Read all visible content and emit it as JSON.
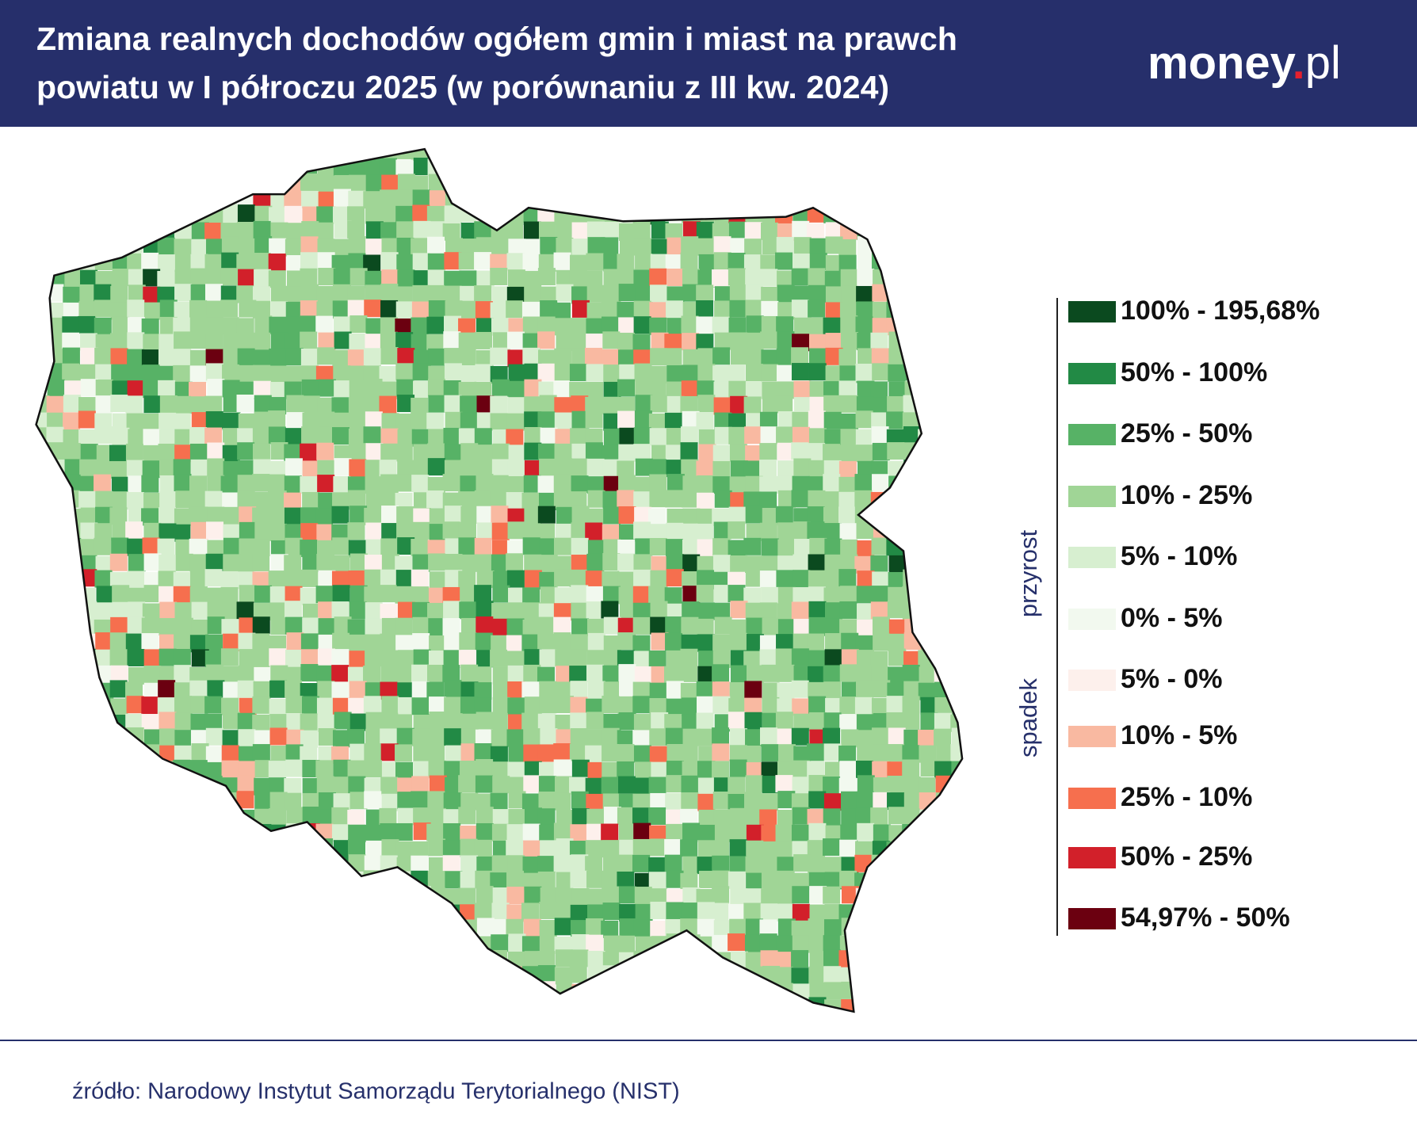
{
  "header": {
    "title_lines": [
      "Zmiana realnych dochodów ogółem gmin i miast na prawch",
      "powiatu w I półroczu 2025 (w porównaniu z III kw. 2024)"
    ],
    "logo": "money",
    "logo_suffix": "pl"
  },
  "legend": {
    "groups": {
      "increase": "przyrost",
      "decrease": "spadek"
    },
    "items": [
      {
        "label": "100% - 195,68%",
        "color": "#0b4a1f"
      },
      {
        "label": "50% - 100%",
        "color": "#228a45"
      },
      {
        "label": "25% - 50%",
        "color": "#57b266"
      },
      {
        "label": "10% - 25%",
        "color": "#a0d596"
      },
      {
        "label": "5% - 10%",
        "color": "#d7efd0"
      },
      {
        "label": "0% - 5%",
        "color": "#f2f9ef"
      },
      {
        "label": "5% - 0%",
        "color": "#fdf0ec"
      },
      {
        "label": "10% - 5%",
        "color": "#f9b9a1"
      },
      {
        "label": "25% - 10%",
        "color": "#f66f4e"
      },
      {
        "label": "50% - 25%",
        "color": "#d2202a"
      },
      {
        "label": "54,97% - 50%",
        "color": "#6b0010"
      }
    ]
  },
  "footer": {
    "source": "źródło: Narodowy Instytut Samorządu Terytorialnego (NIST)"
  }
}
